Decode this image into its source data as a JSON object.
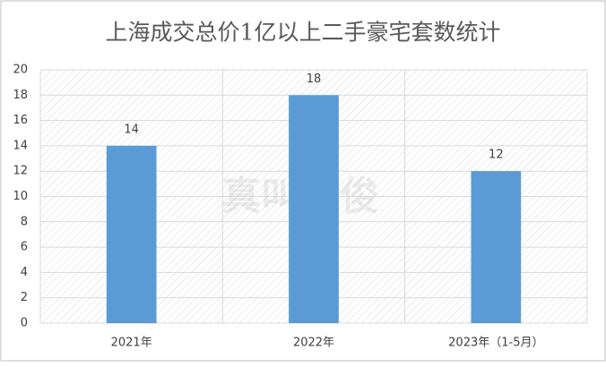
{
  "chart_data": {
    "type": "bar",
    "title": "上海成交总价1亿以上二手豪宅套数统计",
    "categories": [
      "2021年",
      "2022年",
      "2023年（1-5月）"
    ],
    "values": [
      14,
      18,
      12
    ],
    "color": "#5b9bd5",
    "ylim": [
      0,
      20
    ],
    "yticks": [
      0,
      2,
      4,
      6,
      8,
      10,
      12,
      14,
      16,
      18,
      20
    ],
    "grid": true,
    "watermark": "真叫卢俊"
  }
}
